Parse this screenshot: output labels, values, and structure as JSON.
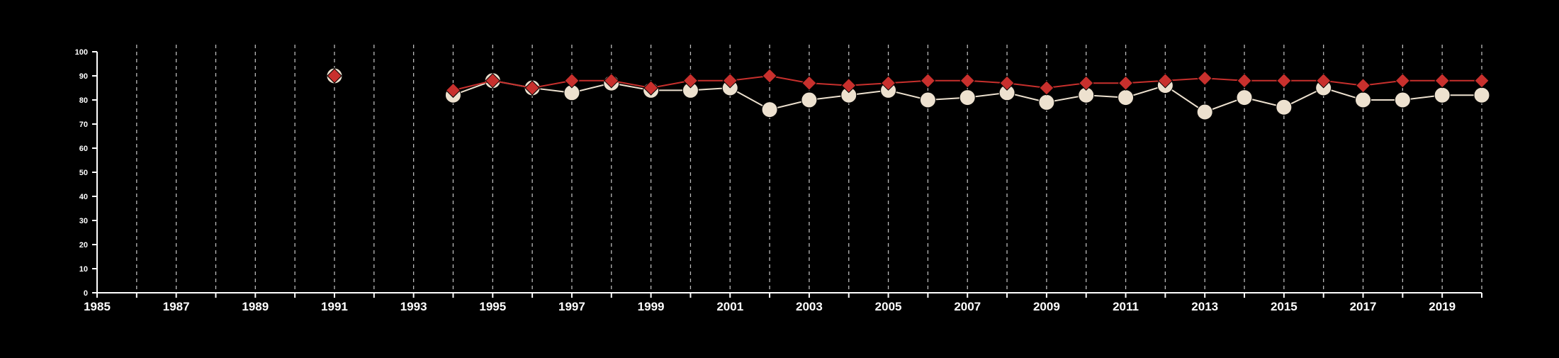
{
  "colors": {
    "background": "#000000",
    "axis": "#ffffff",
    "grid": "#bbbbbb",
    "series_a": "#ede1cf",
    "series_b": "#c8302d"
  },
  "chart_data": {
    "type": "line",
    "title": "",
    "xlabel": "",
    "ylabel": "",
    "xlim": [
      1985,
      2020
    ],
    "ylim": [
      0,
      100
    ],
    "x_ticks": [
      1985,
      1986,
      1987,
      1988,
      1989,
      1990,
      1991,
      1992,
      1993,
      1994,
      1995,
      1996,
      1997,
      1998,
      1999,
      2000,
      2001,
      2002,
      2003,
      2004,
      2005,
      2006,
      2007,
      2008,
      2009,
      2010,
      2011,
      2012,
      2013,
      2014,
      2015,
      2016,
      2017,
      2018,
      2019,
      2020
    ],
    "x_tick_labels": [
      "1985",
      "1987",
      "1989",
      "1991",
      "1993",
      "1995",
      "1997",
      "1999",
      "2001",
      "2003",
      "2005",
      "2007",
      "2009",
      "2011",
      "2013",
      "2015",
      "2017",
      "2019"
    ],
    "y_ticks": [
      0,
      10,
      20,
      30,
      40,
      50,
      60,
      70,
      80,
      90,
      100
    ],
    "y_tick_labels": [
      "0",
      "10",
      "20",
      "30",
      "40",
      "50",
      "60",
      "70",
      "80",
      "90",
      "100"
    ],
    "grid": "vertical dashed",
    "legend": "none",
    "series": [
      {
        "marker": "circle",
        "x": [
          1991,
          1994,
          1995,
          1996,
          1997,
          1998,
          1999,
          2000,
          2001,
          2002,
          2003,
          2004,
          2005,
          2006,
          2007,
          2008,
          2009,
          2010,
          2011,
          2012,
          2013,
          2014,
          2015,
          2016,
          2017,
          2018,
          2019,
          2020
        ],
        "values": [
          90,
          82,
          88,
          85,
          83,
          87,
          84,
          84,
          85,
          76,
          80,
          82,
          84,
          80,
          81,
          83,
          79,
          82,
          81,
          86,
          75,
          81,
          77,
          85,
          80,
          80,
          82,
          82
        ]
      },
      {
        "marker": "diamond",
        "x": [
          1991,
          1994,
          1995,
          1996,
          1997,
          1998,
          1999,
          2000,
          2001,
          2002,
          2003,
          2004,
          2005,
          2006,
          2007,
          2008,
          2009,
          2010,
          2011,
          2012,
          2013,
          2014,
          2015,
          2016,
          2017,
          2018,
          2019,
          2020
        ],
        "values": [
          90,
          84,
          88,
          85,
          88,
          88,
          85,
          88,
          88,
          90,
          87,
          86,
          87,
          88,
          88,
          87,
          85,
          87,
          87,
          88,
          89,
          88,
          88,
          88,
          86,
          88,
          88,
          88
        ]
      }
    ]
  }
}
